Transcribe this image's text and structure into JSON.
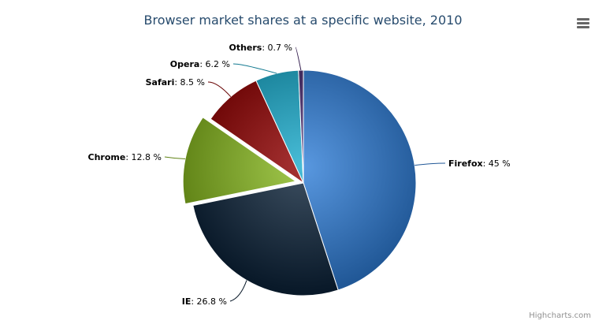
{
  "chart_data": {
    "type": "pie",
    "title": "Browser market shares at a specific website, 2010",
    "categories": [
      "Firefox",
      "IE",
      "Chrome",
      "Safari",
      "Opera",
      "Others"
    ],
    "values": [
      45.0,
      26.8,
      12.8,
      8.5,
      6.2,
      0.7
    ],
    "value_suffix": " %",
    "sliced": [
      "Chrome"
    ],
    "colors": [
      "#2f7ed8",
      "#0d233a",
      "#8bbc21",
      "#910000",
      "#1aadce",
      "#492970"
    ],
    "legend": "none"
  },
  "credits": "Highcharts.com",
  "menu_icon": "hamburger-menu-icon"
}
